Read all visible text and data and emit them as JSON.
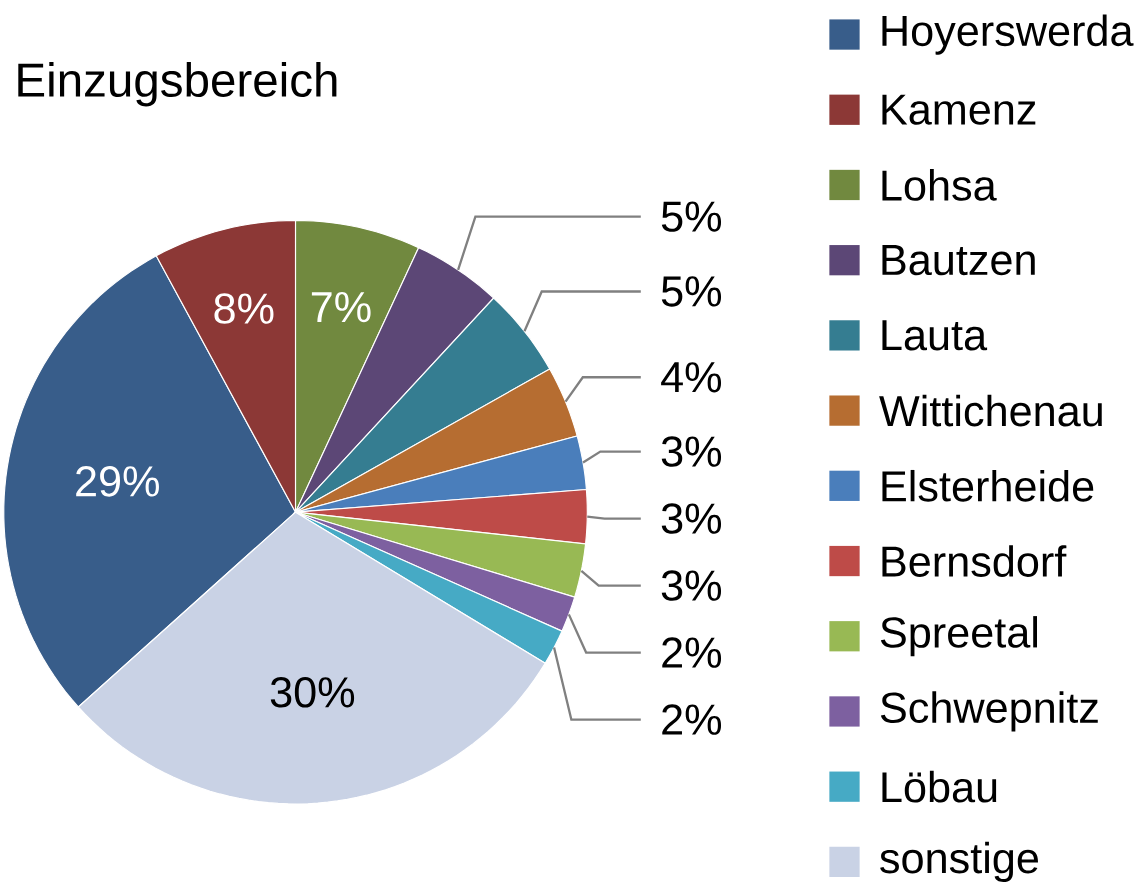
{
  "chart_data": {
    "type": "pie",
    "title": "Einzugsbereich",
    "categories": [
      "Hoyerswerda",
      "Kamenz",
      "Lohsa",
      "Bautzen",
      "Lauta",
      "Wittichenau",
      "Elsterheide",
      "Bernsdorf",
      "Spreetal",
      "Schwepnitz",
      "Löbau",
      "sonstige"
    ],
    "values": [
      29,
      8,
      7,
      5,
      5,
      4,
      3,
      3,
      3,
      2,
      2,
      30
    ],
    "colors": [
      "#385d8a",
      "#8c3836",
      "#71893f",
      "#5c4776",
      "#357d91",
      "#b66d31",
      "#4a7ebb",
      "#be4b48",
      "#98b954",
      "#7d60a0",
      "#46aac5",
      "#c9d2e5"
    ],
    "value_labels": [
      "29%",
      "8%",
      "7%",
      "5%",
      "5%",
      "4%",
      "3%",
      "3%",
      "3%",
      "2%",
      "2%",
      "30%"
    ],
    "legend": "right"
  }
}
